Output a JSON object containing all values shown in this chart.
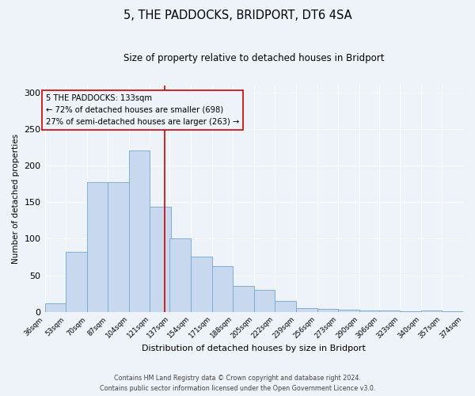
{
  "title": "5, THE PADDOCKS, BRIDPORT, DT6 4SA",
  "subtitle": "Size of property relative to detached houses in Bridport",
  "xlabel": "Distribution of detached houses by size in Bridport",
  "ylabel": "Number of detached properties",
  "bins": [
    36,
    53,
    70,
    87,
    104,
    121,
    137,
    154,
    171,
    188,
    205,
    222,
    239,
    256,
    273,
    290,
    306,
    323,
    340,
    357,
    374
  ],
  "counts": [
    11,
    82,
    178,
    178,
    221,
    144,
    100,
    75,
    63,
    35,
    30,
    15,
    5,
    4,
    3,
    2,
    2,
    1,
    2,
    1
  ],
  "bar_facecolor": "#c8d8ef",
  "bar_edgecolor": "#7bafd4",
  "bar_linewidth": 0.7,
  "vline_x": 133,
  "vline_color": "#cc0000",
  "vline_linewidth": 1.2,
  "annotation_box_edgecolor": "#cc0000",
  "annotation_lines": [
    "5 THE PADDOCKS: 133sqm",
    "← 72% of detached houses are smaller (698)",
    "27% of semi-detached houses are larger (263) →"
  ],
  "ylim": [
    0,
    310
  ],
  "yticks": [
    0,
    50,
    100,
    150,
    200,
    250,
    300
  ],
  "background_color": "#eef2f9",
  "grid_color": "#ffffff",
  "footer_line1": "Contains HM Land Registry data © Crown copyright and database right 2024.",
  "footer_line2": "Contains public sector information licensed under the Open Government Licence v3.0."
}
